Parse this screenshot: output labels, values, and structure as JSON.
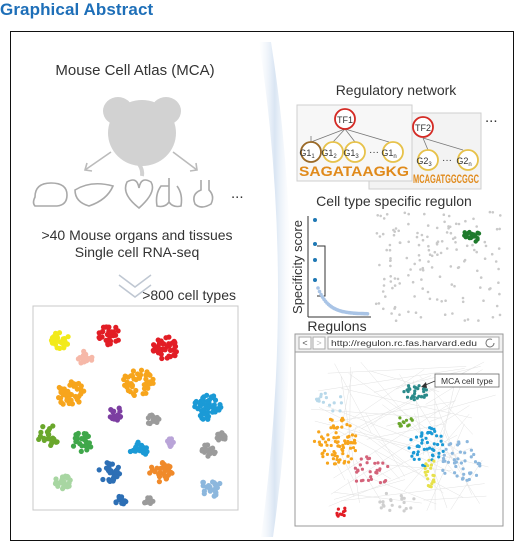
{
  "header": {
    "title": "Graphical Abstract"
  },
  "left": {
    "mca_title": "Mouse Cell Atlas (MCA)",
    "organs_ellipsis": "...",
    "organs_line1": ">40 Mouse organs and tissues",
    "organs_line2": "Single cell RNA-seq",
    "cell_types_label": ">800 cell types"
  },
  "network": {
    "title": "Regulatory network",
    "tf1": "TF1",
    "tf2": "TF2",
    "g1_nodes": [
      "G1",
      "G1",
      "G1",
      "G1"
    ],
    "g1_subs": [
      "1",
      "2",
      "3",
      "n"
    ],
    "g1_ellipsis": "···",
    "g2_nodes": [
      "G2",
      "G2"
    ],
    "g2_subs": [
      "3",
      "n"
    ],
    "g2_ellipsis": "···",
    "motif1": "SAGATAAGKG",
    "motif2": "MCAGATGGCGGC",
    "more": "..."
  },
  "regulon": {
    "title": "Cell type specific regulon",
    "ylabel": "Specificity score",
    "xlabel": "Regulons"
  },
  "browser": {
    "url": "http://regulon.rc.fas.harvard.edu",
    "back": "<",
    "forward": ">",
    "callout": "MCA cell type"
  },
  "colors": {
    "header_blue": "#1e6fb8",
    "cluster_palette": [
      "#f2ea1a",
      "#e21d25",
      "#f6b8a8",
      "#f7a51c",
      "#1b9ad6",
      "#7c3ea1",
      "#6aa72c",
      "#3fa74a",
      "#1f5ca8",
      "#f08a2a",
      "#b9a4d8",
      "#9b9b9b",
      "#a8d6a2",
      "#2d6fb5",
      "#8cb7dd"
    ]
  }
}
